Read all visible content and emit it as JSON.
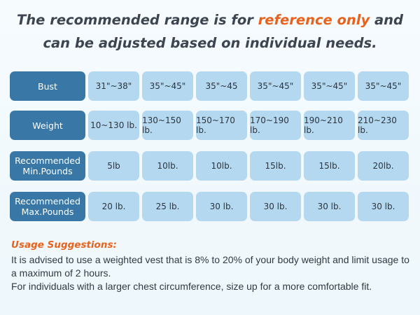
{
  "headline": {
    "line1_before": "The recommended range is for ",
    "line1_accent": "reference only",
    "line1_after": " and",
    "line2": "can be adjusted based on individual needs."
  },
  "size_table": {
    "rows": [
      {
        "label": [
          "Bust"
        ],
        "values": [
          "31\"~38\"",
          "35\"~45\"",
          "35\"~45",
          "35\"~45\"",
          "35\"~45\"",
          "35\"~45\""
        ]
      },
      {
        "label": [
          "Weight"
        ],
        "values": [
          "10~130 lb.",
          "130~150 lb.",
          "150~170 lb.",
          "170~190 lb.",
          "190~210 lb.",
          "210~230 lb."
        ]
      },
      {
        "label": [
          "Recommended",
          "Min.Pounds"
        ],
        "values": [
          "5lb",
          "10lb.",
          "10lb.",
          "15lb.",
          "15lb.",
          "20lb."
        ]
      },
      {
        "label": [
          "Recommended",
          "Max.Pounds"
        ],
        "values": [
          "20 lb.",
          "25 lb.",
          "30 lb.",
          "30 lb.",
          "30 lb.",
          "30 lb."
        ]
      }
    ]
  },
  "usage": {
    "title": "Usage Suggestions:",
    "paragraph1": "It is advised to use a weighted vest that is 8% to 20% of your body weight and limit usage to a maximum of 2 hours.",
    "paragraph2": "For individuals with a larger chest circumference, size up for a more comfortable fit."
  },
  "colors": {
    "accent": "#e8621c",
    "label_bg": "#3877a6",
    "cell_bg": "#b4d8ef",
    "text": "#2f3a44"
  }
}
